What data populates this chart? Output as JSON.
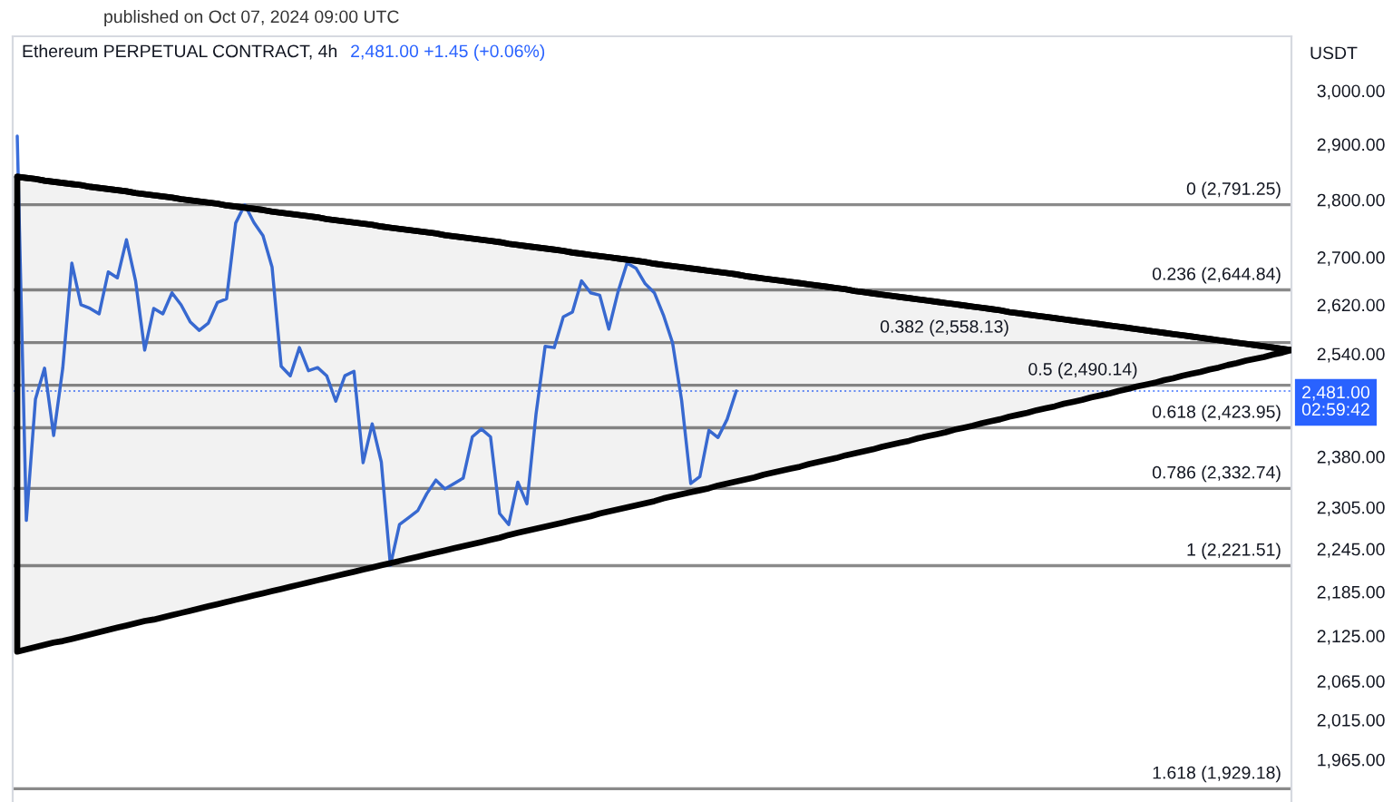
{
  "chart_data": {
    "type": "line",
    "title": "Ethereum PERPETUAL CONTRACT, 4h",
    "subtitle": "2,481.00 +1.45 (+0.06%)",
    "ylabel": "USDT",
    "annotations": [
      "published on Oct 07, 2024 09:00 UTC"
    ],
    "log": "y",
    "tick_labels": "y",
    "categories": [
      null,
      null,
      null,
      null,
      null,
      null,
      null,
      null,
      null,
      null,
      null,
      null,
      null,
      null,
      null,
      null,
      null,
      null,
      null,
      null,
      null,
      null,
      null,
      null,
      null,
      null,
      null,
      null,
      null,
      null,
      null,
      null,
      null,
      null,
      null,
      null,
      null,
      null,
      null,
      null,
      null,
      null,
      null,
      null,
      null,
      null,
      null,
      null,
      null,
      null,
      null,
      null,
      null,
      null,
      null,
      null,
      null,
      null,
      null,
      null,
      null,
      null,
      null,
      null,
      null,
      null,
      null,
      null,
      null,
      null,
      null,
      null,
      null,
      null,
      null,
      null,
      null,
      null,
      null,
      null,
      null,
      null,
      null,
      null,
      null,
      null,
      null,
      null,
      null,
      null,
      null,
      null,
      null,
      null,
      null,
      null,
      null,
      null,
      null,
      null,
      null,
      null,
      null,
      null,
      null,
      null,
      null,
      null,
      null,
      null,
      null,
      null,
      null,
      null,
      null,
      null,
      null,
      null,
      null,
      null,
      null,
      null,
      null,
      null,
      null,
      null,
      null,
      null,
      null,
      null,
      null,
      null,
      null,
      null,
      null,
      null,
      null,
      null,
      null,
      null,
      null
    ],
    "ylim": [
      1913,
      3105
    ],
    "yticks": [
      {
        "value": 1965,
        "label": "1,965.00"
      },
      {
        "value": 2015,
        "label": "2,015.00"
      },
      {
        "value": 2065,
        "label": "2,065.00"
      },
      {
        "value": 2125,
        "label": "2,125.00"
      },
      {
        "value": 2185,
        "label": "2,185.00"
      },
      {
        "value": 2245,
        "label": "2,245.00"
      },
      {
        "value": 2305,
        "label": "2,305.00"
      },
      {
        "value": 2380,
        "label": "2,380.00"
      },
      {
        "value": 2540,
        "label": "2,540.00"
      },
      {
        "value": 2620,
        "label": "2,620.00"
      },
      {
        "value": 2700,
        "label": "2,700.00"
      },
      {
        "value": 2800,
        "label": "2,800.00"
      },
      {
        "value": 2900,
        "label": "2,900.00"
      },
      {
        "value": 3000,
        "label": "3,000.00"
      }
    ],
    "ref_lines": [
      {
        "axis": "y",
        "value": 2791.25,
        "label": "0 (2,791.25)",
        "color": "#8a8a8a",
        "line_style": "solid"
      },
      {
        "axis": "y",
        "value": 2644.84,
        "label": "0.236 (2,644.84)",
        "color": "#8a8a8a",
        "line_style": "solid"
      },
      {
        "axis": "y",
        "value": 2558.13,
        "label": "0.382 (2,558.13)",
        "color": "#8a8a8a",
        "line_style": "solid"
      },
      {
        "axis": "y",
        "value": 2490.14,
        "label": "0.5 (2,490.14)",
        "color": "#8a8a8a",
        "line_style": "solid"
      },
      {
        "axis": "y",
        "value": 2423.95,
        "label": "0.618 (2,423.95)",
        "color": "#8a8a8a",
        "line_style": "solid"
      },
      {
        "axis": "y",
        "value": 2332.74,
        "label": "0.786 (2,332.74)",
        "color": "#8a8a8a",
        "line_style": "solid"
      },
      {
        "axis": "y",
        "value": 2221.51,
        "label": "1 (2,221.51)",
        "color": "#8a8a8a",
        "line_style": "solid"
      },
      {
        "axis": "y",
        "value": 1929.18,
        "label": "1.618 (1,929.18)",
        "color": "#8a8a8a",
        "line_style": "solid"
      },
      {
        "axis": "y",
        "value": 2481,
        "label": "2,481.00\n02:59:42",
        "color": "#2962ff",
        "line_style": "dotted"
      }
    ],
    "series": [
      {
        "color": "#3b6fdc",
        "values": [
          2915,
          2286,
          2468,
          2517,
          2412,
          2517,
          2690,
          2620,
          2614,
          2605,
          2675,
          2665,
          2730,
          2660,
          2546,
          2614,
          2605,
          2640,
          2620,
          2592,
          2578,
          2590,
          2624,
          2630,
          2759,
          2791,
          2760,
          2737,
          2683,
          2520,
          2505,
          2550,
          2513,
          2518,
          2505,
          2465,
          2505,
          2512,
          2371,
          2430,
          2372,
          2222,
          2280,
          2290,
          2300,
          2325,
          2345,
          2332,
          2340,
          2348,
          2410,
          2422,
          2410,
          2296,
          2280,
          2342,
          2310,
          2445,
          2552,
          2550,
          2600,
          2608,
          2660,
          2640,
          2636,
          2580,
          2641,
          2690,
          2681,
          2655,
          2640,
          2603,
          2558,
          2466,
          2340,
          2350,
          2420,
          2409,
          2437,
          2481,
          null,
          null,
          null,
          null,
          null,
          null,
          null,
          null,
          null,
          null,
          null,
          null,
          null,
          null,
          null,
          null,
          null,
          null,
          null,
          null,
          null,
          null,
          null,
          null,
          null,
          null,
          null,
          null,
          null,
          null,
          null,
          null,
          null,
          null,
          null,
          null,
          null,
          null,
          null,
          null,
          null,
          null,
          null,
          null,
          null,
          null,
          null,
          null,
          null,
          null,
          null,
          null,
          null,
          null,
          null,
          null,
          null,
          null,
          null,
          null,
          null
        ]
      },
      {
        "color": "#000000",
        "values": [
          2841,
          2839,
          2837,
          2834,
          2832,
          2830,
          2828,
          2826,
          2823,
          2821,
          2819,
          2817,
          2815,
          2812,
          2810,
          2808,
          2806,
          2804,
          2801,
          2799,
          2797,
          2795,
          2793,
          2790,
          2788,
          2786,
          2784,
          2782,
          2779,
          2777,
          2775,
          2773,
          2771,
          2769,
          2766,
          2764,
          2762,
          2760,
          2758,
          2756,
          2753,
          2751,
          2749,
          2747,
          2745,
          2743,
          2741,
          2738,
          2736,
          2734,
          2732,
          2730,
          2728,
          2726,
          2723,
          2721,
          2719,
          2717,
          2715,
          2713,
          2711,
          2708,
          2706,
          2704,
          2702,
          2700,
          2698,
          2696,
          2694,
          2692,
          2689,
          2687,
          2685,
          2683,
          2681,
          2679,
          2677,
          2675,
          2673,
          2671,
          2668,
          2666,
          2664,
          2662,
          2660,
          2658,
          2656,
          2654,
          2652,
          2650,
          2648,
          2646,
          2643,
          2641,
          2639,
          2637,
          2635,
          2633,
          2631,
          2629,
          2627,
          2625,
          2623,
          2621,
          2619,
          2617,
          2615,
          2613,
          2611,
          2608,
          2606,
          2604,
          2602,
          2600,
          2598,
          2596,
          2594,
          2592,
          2590,
          2588,
          2586,
          2584,
          2582,
          2580,
          2578,
          2576,
          2574,
          2572,
          2570,
          2568,
          2566,
          2564,
          2562,
          2560,
          2558,
          2556,
          2554,
          2552,
          2550,
          2548,
          2546
        ],
        "lower": [
          2104,
          2107,
          2110,
          2113,
          2116,
          2118,
          2121,
          2124,
          2127,
          2130,
          2133,
          2136,
          2139,
          2142,
          2145,
          2147,
          2150,
          2153,
          2156,
          2159,
          2162,
          2165,
          2168,
          2171,
          2174,
          2177,
          2180,
          2183,
          2186,
          2189,
          2192,
          2195,
          2198,
          2201,
          2204,
          2207,
          2210,
          2213,
          2216,
          2219,
          2222,
          2225,
          2228,
          2231,
          2234,
          2237,
          2240,
          2243,
          2246,
          2249,
          2252,
          2255,
          2258,
          2261,
          2265,
          2268,
          2271,
          2274,
          2277,
          2280,
          2283,
          2286,
          2289,
          2292,
          2296,
          2299,
          2302,
          2305,
          2308,
          2311,
          2314,
          2318,
          2321,
          2324,
          2327,
          2330,
          2333,
          2337,
          2340,
          2343,
          2346,
          2349,
          2353,
          2356,
          2359,
          2362,
          2365,
          2369,
          2372,
          2375,
          2378,
          2382,
          2385,
          2388,
          2391,
          2395,
          2398,
          2401,
          2404,
          2408,
          2411,
          2414,
          2417,
          2421,
          2424,
          2427,
          2431,
          2434,
          2437,
          2441,
          2444,
          2447,
          2451,
          2454,
          2457,
          2461,
          2464,
          2467,
          2471,
          2474,
          2477,
          2481,
          2484,
          2488,
          2491,
          2494,
          2498,
          2501,
          2505,
          2508,
          2511,
          2515,
          2518,
          2522,
          2525,
          2529,
          2532,
          2535,
          2539,
          2542,
          2546
        ],
        "upper": [
          2841,
          2839,
          2837,
          2834,
          2832,
          2830,
          2828,
          2826,
          2823,
          2821,
          2819,
          2817,
          2815,
          2812,
          2810,
          2808,
          2806,
          2804,
          2801,
          2799,
          2797,
          2795,
          2793,
          2790,
          2788,
          2786,
          2784,
          2782,
          2779,
          2777,
          2775,
          2773,
          2771,
          2769,
          2766,
          2764,
          2762,
          2760,
          2758,
          2756,
          2753,
          2751,
          2749,
          2747,
          2745,
          2743,
          2741,
          2738,
          2736,
          2734,
          2732,
          2730,
          2728,
          2726,
          2723,
          2721,
          2719,
          2717,
          2715,
          2713,
          2711,
          2708,
          2706,
          2704,
          2702,
          2700,
          2698,
          2696,
          2694,
          2692,
          2689,
          2687,
          2685,
          2683,
          2681,
          2679,
          2677,
          2675,
          2673,
          2671,
          2668,
          2666,
          2664,
          2662,
          2660,
          2658,
          2656,
          2654,
          2652,
          2650,
          2648,
          2646,
          2643,
          2641,
          2639,
          2637,
          2635,
          2633,
          2631,
          2629,
          2627,
          2625,
          2623,
          2621,
          2619,
          2617,
          2615,
          2613,
          2611,
          2608,
          2606,
          2604,
          2602,
          2600,
          2598,
          2596,
          2594,
          2592,
          2590,
          2588,
          2586,
          2584,
          2582,
          2580,
          2578,
          2576,
          2574,
          2572,
          2570,
          2568,
          2566,
          2564,
          2562,
          2560,
          2558,
          2556,
          2554,
          2552,
          2550,
          2548,
          2546
        ]
      }
    ]
  }
}
